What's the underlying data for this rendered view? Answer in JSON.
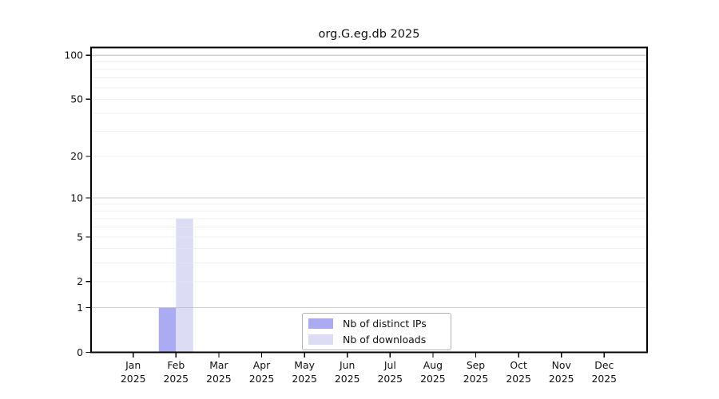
{
  "figure": {
    "background": "#ffffff"
  },
  "chart_data": {
    "type": "bar",
    "title": "org.G.eg.db 2025",
    "xlabel": "",
    "ylabel": "",
    "categories": [
      "Jan",
      "Feb",
      "Mar",
      "Apr",
      "May",
      "Jun",
      "Jul",
      "Aug",
      "Sep",
      "Oct",
      "Nov",
      "Dec"
    ],
    "year_label": "2025",
    "series": [
      {
        "name": "Nb of distinct IPs",
        "color": "#aaabf2",
        "values": [
          0,
          1,
          0,
          0,
          0,
          0,
          0,
          0,
          0,
          0,
          0,
          0
        ]
      },
      {
        "name": "Nb of downloads",
        "color": "#dcdcf5",
        "values": [
          0,
          7,
          0,
          0,
          0,
          0,
          0,
          0,
          0,
          0,
          0,
          0
        ]
      }
    ],
    "y_scale": "log1p",
    "ylim": [
      0,
      113
    ],
    "y_ticks": [
      0,
      1,
      2,
      5,
      10,
      20,
      50,
      100
    ],
    "y_major_gridlines": [
      1,
      10,
      100
    ],
    "y_minor_gridlines": [
      2,
      3,
      4,
      5,
      6,
      7,
      8,
      9,
      20,
      30,
      40,
      50,
      60,
      70,
      80,
      90
    ],
    "grid": "on",
    "legend_position": "lower center",
    "colors": {
      "axis": "#000000",
      "tick_label": "#111111",
      "major_grid": "#b4b4b4",
      "minor_grid": "#e9e9e9"
    }
  }
}
